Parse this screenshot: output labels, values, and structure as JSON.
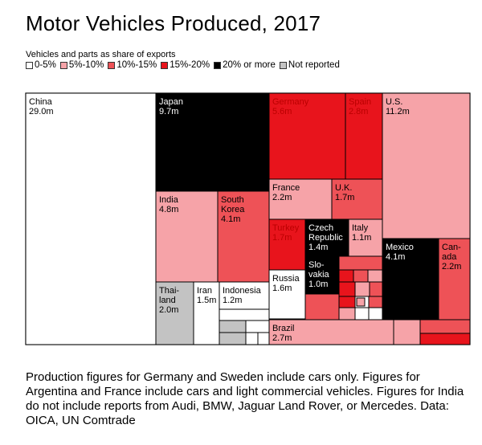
{
  "title": "Motor Vehicles Produced, 2017",
  "legend": {
    "title": "Vehicles and parts as share of exports",
    "items": [
      {
        "label": "0-5%",
        "color": "#ffffff"
      },
      {
        "label": "5%-10%",
        "color": "#f6a3a8"
      },
      {
        "label": "10%-15%",
        "color": "#ee5257"
      },
      {
        "label": "15%-20%",
        "color": "#e8141c"
      },
      {
        "label": "20% or more",
        "color": "#000000"
      },
      {
        "label": "Not reported",
        "color": "#c3c3c3"
      }
    ]
  },
  "footnote": "Production figures for Germany and Sweden include cars only. Figures for Argentina and France include cars and light commercial vehicles. Figures for India do not include reports from Audi, BMW, Jaguar Land Rover, or Mercedes. Data: OICA, UN Comtrade",
  "chart_data": {
    "type": "treemap",
    "unit": "m",
    "series": [
      {
        "name": "China",
        "value": 29.0,
        "value_label": "29.0m",
        "category": "0-5%"
      },
      {
        "name": "Japan",
        "value": 9.7,
        "value_label": "9.7m",
        "category": "20% or more"
      },
      {
        "name": "Germany",
        "value": 5.6,
        "value_label": "5.6m",
        "category": "15%-20%"
      },
      {
        "name": "Spain",
        "value": 2.8,
        "value_label": "2.8m",
        "category": "15%-20%"
      },
      {
        "name": "U.S.",
        "value": 11.2,
        "value_label": "11.2m",
        "category": "5%-10%"
      },
      {
        "name": "France",
        "value": 2.2,
        "value_label": "2.2m",
        "category": "5%-10%"
      },
      {
        "name": "U.K.",
        "value": 1.7,
        "value_label": "1.7m",
        "category": "10%-15%"
      },
      {
        "name": "India",
        "value": 4.8,
        "value_label": "4.8m",
        "category": "5%-10%"
      },
      {
        "name": "South Korea",
        "value": 4.1,
        "value_label": "4.1m",
        "category": "10%-15%"
      },
      {
        "name": "Turkey",
        "value": 1.7,
        "value_label": "1.7m",
        "category": "15%-20%"
      },
      {
        "name": "Czech Republic",
        "value": 1.4,
        "value_label": "1.4m",
        "category": "20% or more"
      },
      {
        "name": "Italy",
        "value": 1.1,
        "value_label": "1.1m",
        "category": "5%-10%"
      },
      {
        "name": "Mexico",
        "value": 4.1,
        "value_label": "4.1m",
        "category": "20% or more"
      },
      {
        "name": "Canada",
        "value": 2.2,
        "value_label": "2.2m",
        "category": "10%-15%"
      },
      {
        "name": "Slovakia",
        "value": 1.0,
        "value_label": "1.0m",
        "category": "20% or more"
      },
      {
        "name": "Russia",
        "value": 1.6,
        "value_label": "1.6m",
        "category": "0-5%"
      },
      {
        "name": "Thailand",
        "value": 2.0,
        "value_label": "2.0m",
        "category": "Not reported"
      },
      {
        "name": "Iran",
        "value": 1.5,
        "value_label": "1.5m",
        "category": "0-5%"
      },
      {
        "name": "Indonesia",
        "value": 1.2,
        "value_label": "1.2m",
        "category": "0-5%"
      },
      {
        "name": "Brazil",
        "value": 2.7,
        "value_label": "2.7m",
        "category": "5%-10%"
      }
    ]
  }
}
